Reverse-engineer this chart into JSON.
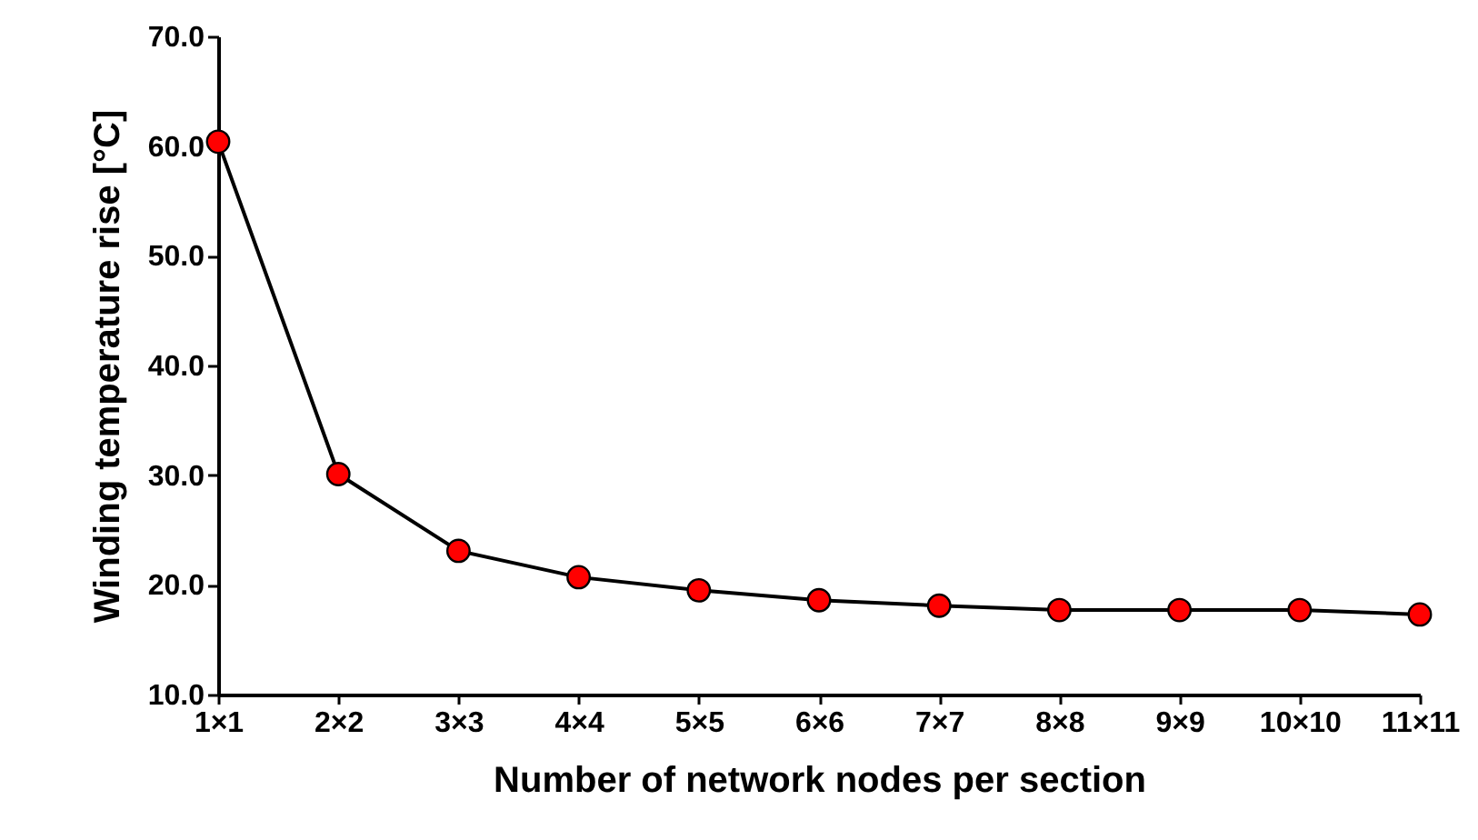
{
  "chart_data": {
    "type": "line",
    "xlabel": "Number of network nodes per section",
    "ylabel": "Winding temperature rise [°C]",
    "categories": [
      "1×1",
      "2×2",
      "3×3",
      "4×4",
      "5×5",
      "6×6",
      "7×7",
      "8×8",
      "9×9",
      "10×10",
      "11×11"
    ],
    "series": [
      {
        "color": "#ff0000",
        "values": [
          60.4,
          30.1,
          23.1,
          20.7,
          19.5,
          18.6,
          18.1,
          17.7,
          17.7,
          17.7,
          17.3
        ]
      }
    ],
    "ylim": [
      10,
      70
    ],
    "yticks": [
      {
        "value": 10,
        "label": "10.0"
      },
      {
        "value": 20,
        "label": "20.0"
      },
      {
        "value": 30,
        "label": "30.0"
      },
      {
        "value": 40,
        "label": "40.0"
      },
      {
        "value": 50,
        "label": "50.0"
      },
      {
        "value": 60,
        "label": "60.0"
      },
      {
        "value": 70,
        "label": "70.0"
      }
    ],
    "marker": "circle",
    "line_style": "solid"
  }
}
